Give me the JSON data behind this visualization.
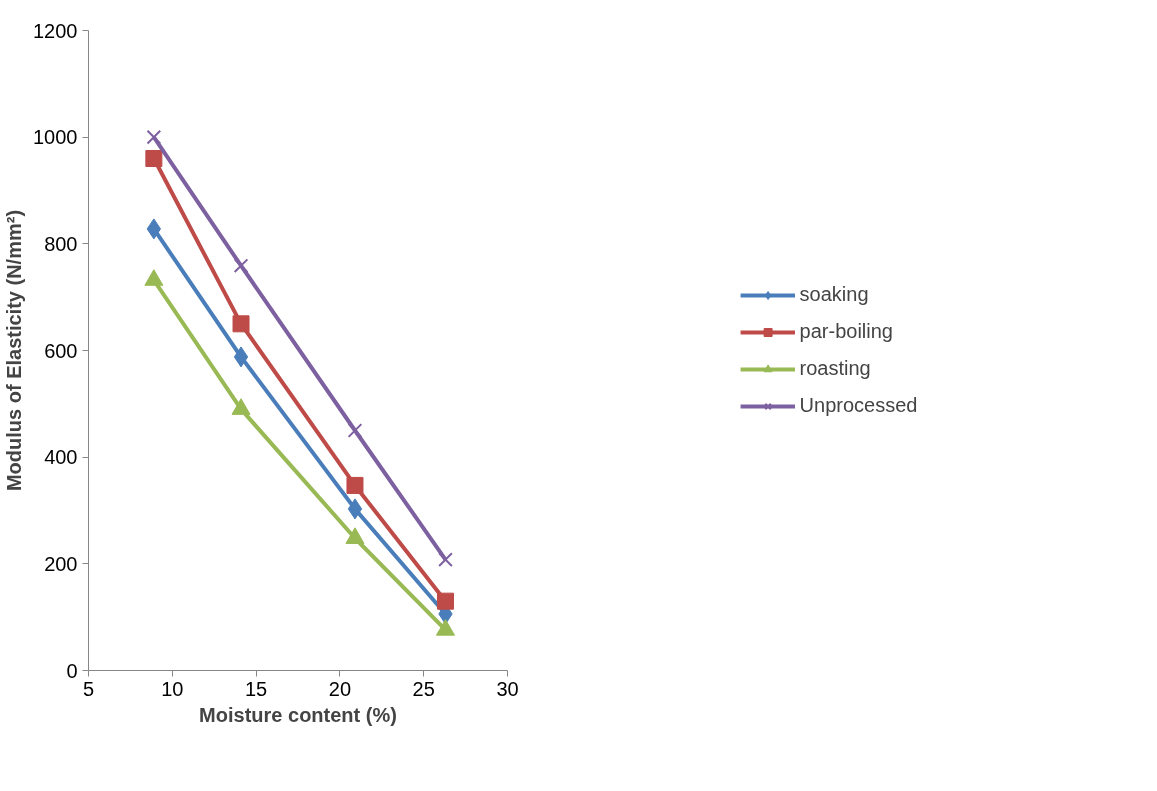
{
  "chart_data": {
    "type": "line",
    "xlabel": "Moisture content (%)",
    "ylabel": "Modulus of Elasticity (N/mm²)",
    "x": [
      8.9,
      14.1,
      20.9,
      26.3
    ],
    "series": [
      {
        "name": "soaking",
        "color": "#4a7ebb",
        "marker": "diamond",
        "values": [
          828,
          588,
          303,
          106
        ]
      },
      {
        "name": "par-boiling",
        "color": "#be4b48",
        "marker": "square",
        "values": [
          960,
          650,
          347,
          130
        ]
      },
      {
        "name": "roasting",
        "color": "#98b954",
        "marker": "triangle",
        "values": [
          732,
          490,
          248,
          76
        ]
      },
      {
        "name": "Unprocessed",
        "color": "#7d60a0",
        "marker": "cross",
        "values": [
          1000,
          759,
          450,
          208
        ]
      }
    ],
    "xlim": [
      5,
      30
    ],
    "xticks": [
      5,
      10,
      15,
      20,
      25,
      30
    ],
    "ylim": [
      0,
      1200
    ],
    "yticks": [
      0,
      200,
      400,
      600,
      800,
      1000,
      1200
    ],
    "grid": false,
    "legend": "right",
    "line_style": "solid"
  }
}
